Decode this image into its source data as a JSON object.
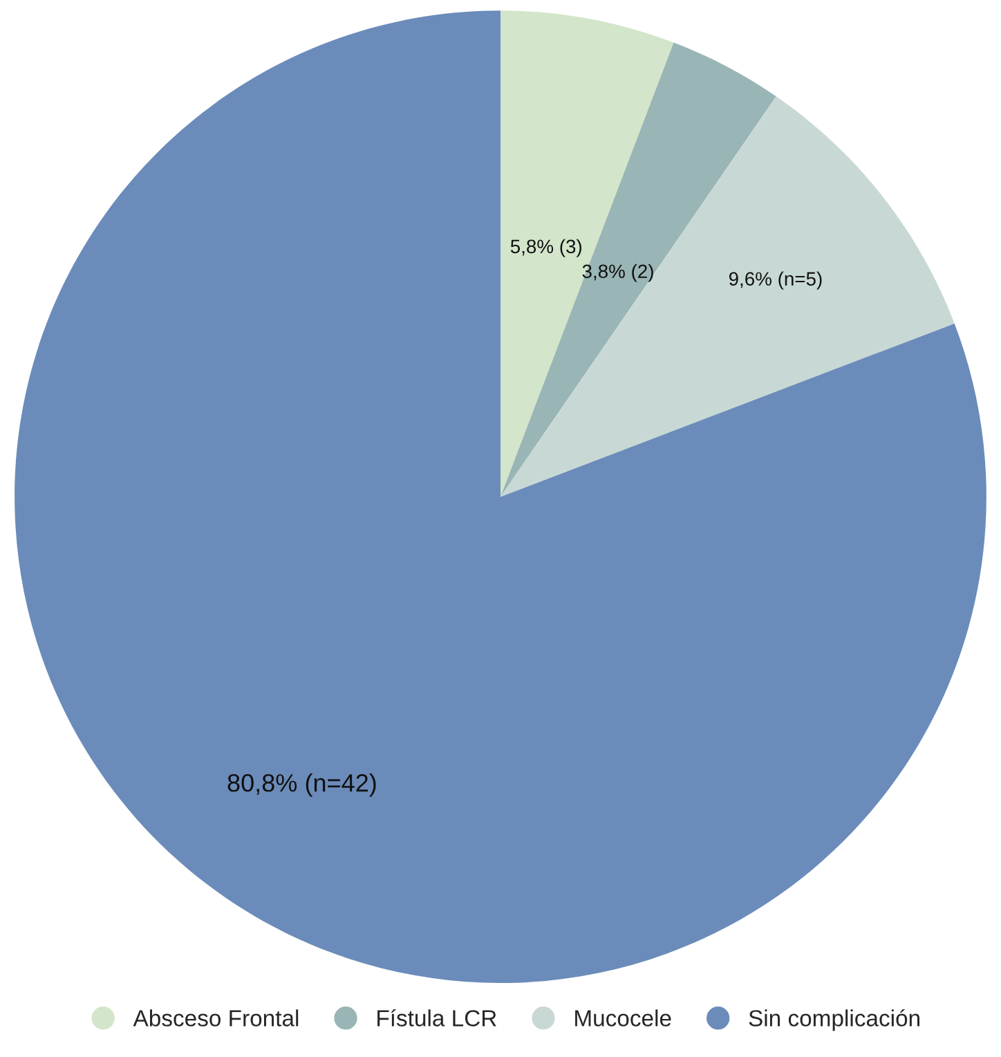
{
  "chart_data": {
    "type": "pie",
    "categories": [
      "Absceso Frontal",
      "Fístula LCR",
      "Mucocele",
      "Sin complicación"
    ],
    "values": [
      5.8,
      3.8,
      9.6,
      80.8
    ],
    "colors": [
      "#d3e5ca",
      "#9ab5b5",
      "#c8d9d5",
      "#6b8cba"
    ],
    "value_labels": [
      "5,8% (3)",
      "3,8% (2)",
      "9,6% (n=5)",
      "80,8% (n=42)"
    ],
    "legend": "bottom"
  }
}
